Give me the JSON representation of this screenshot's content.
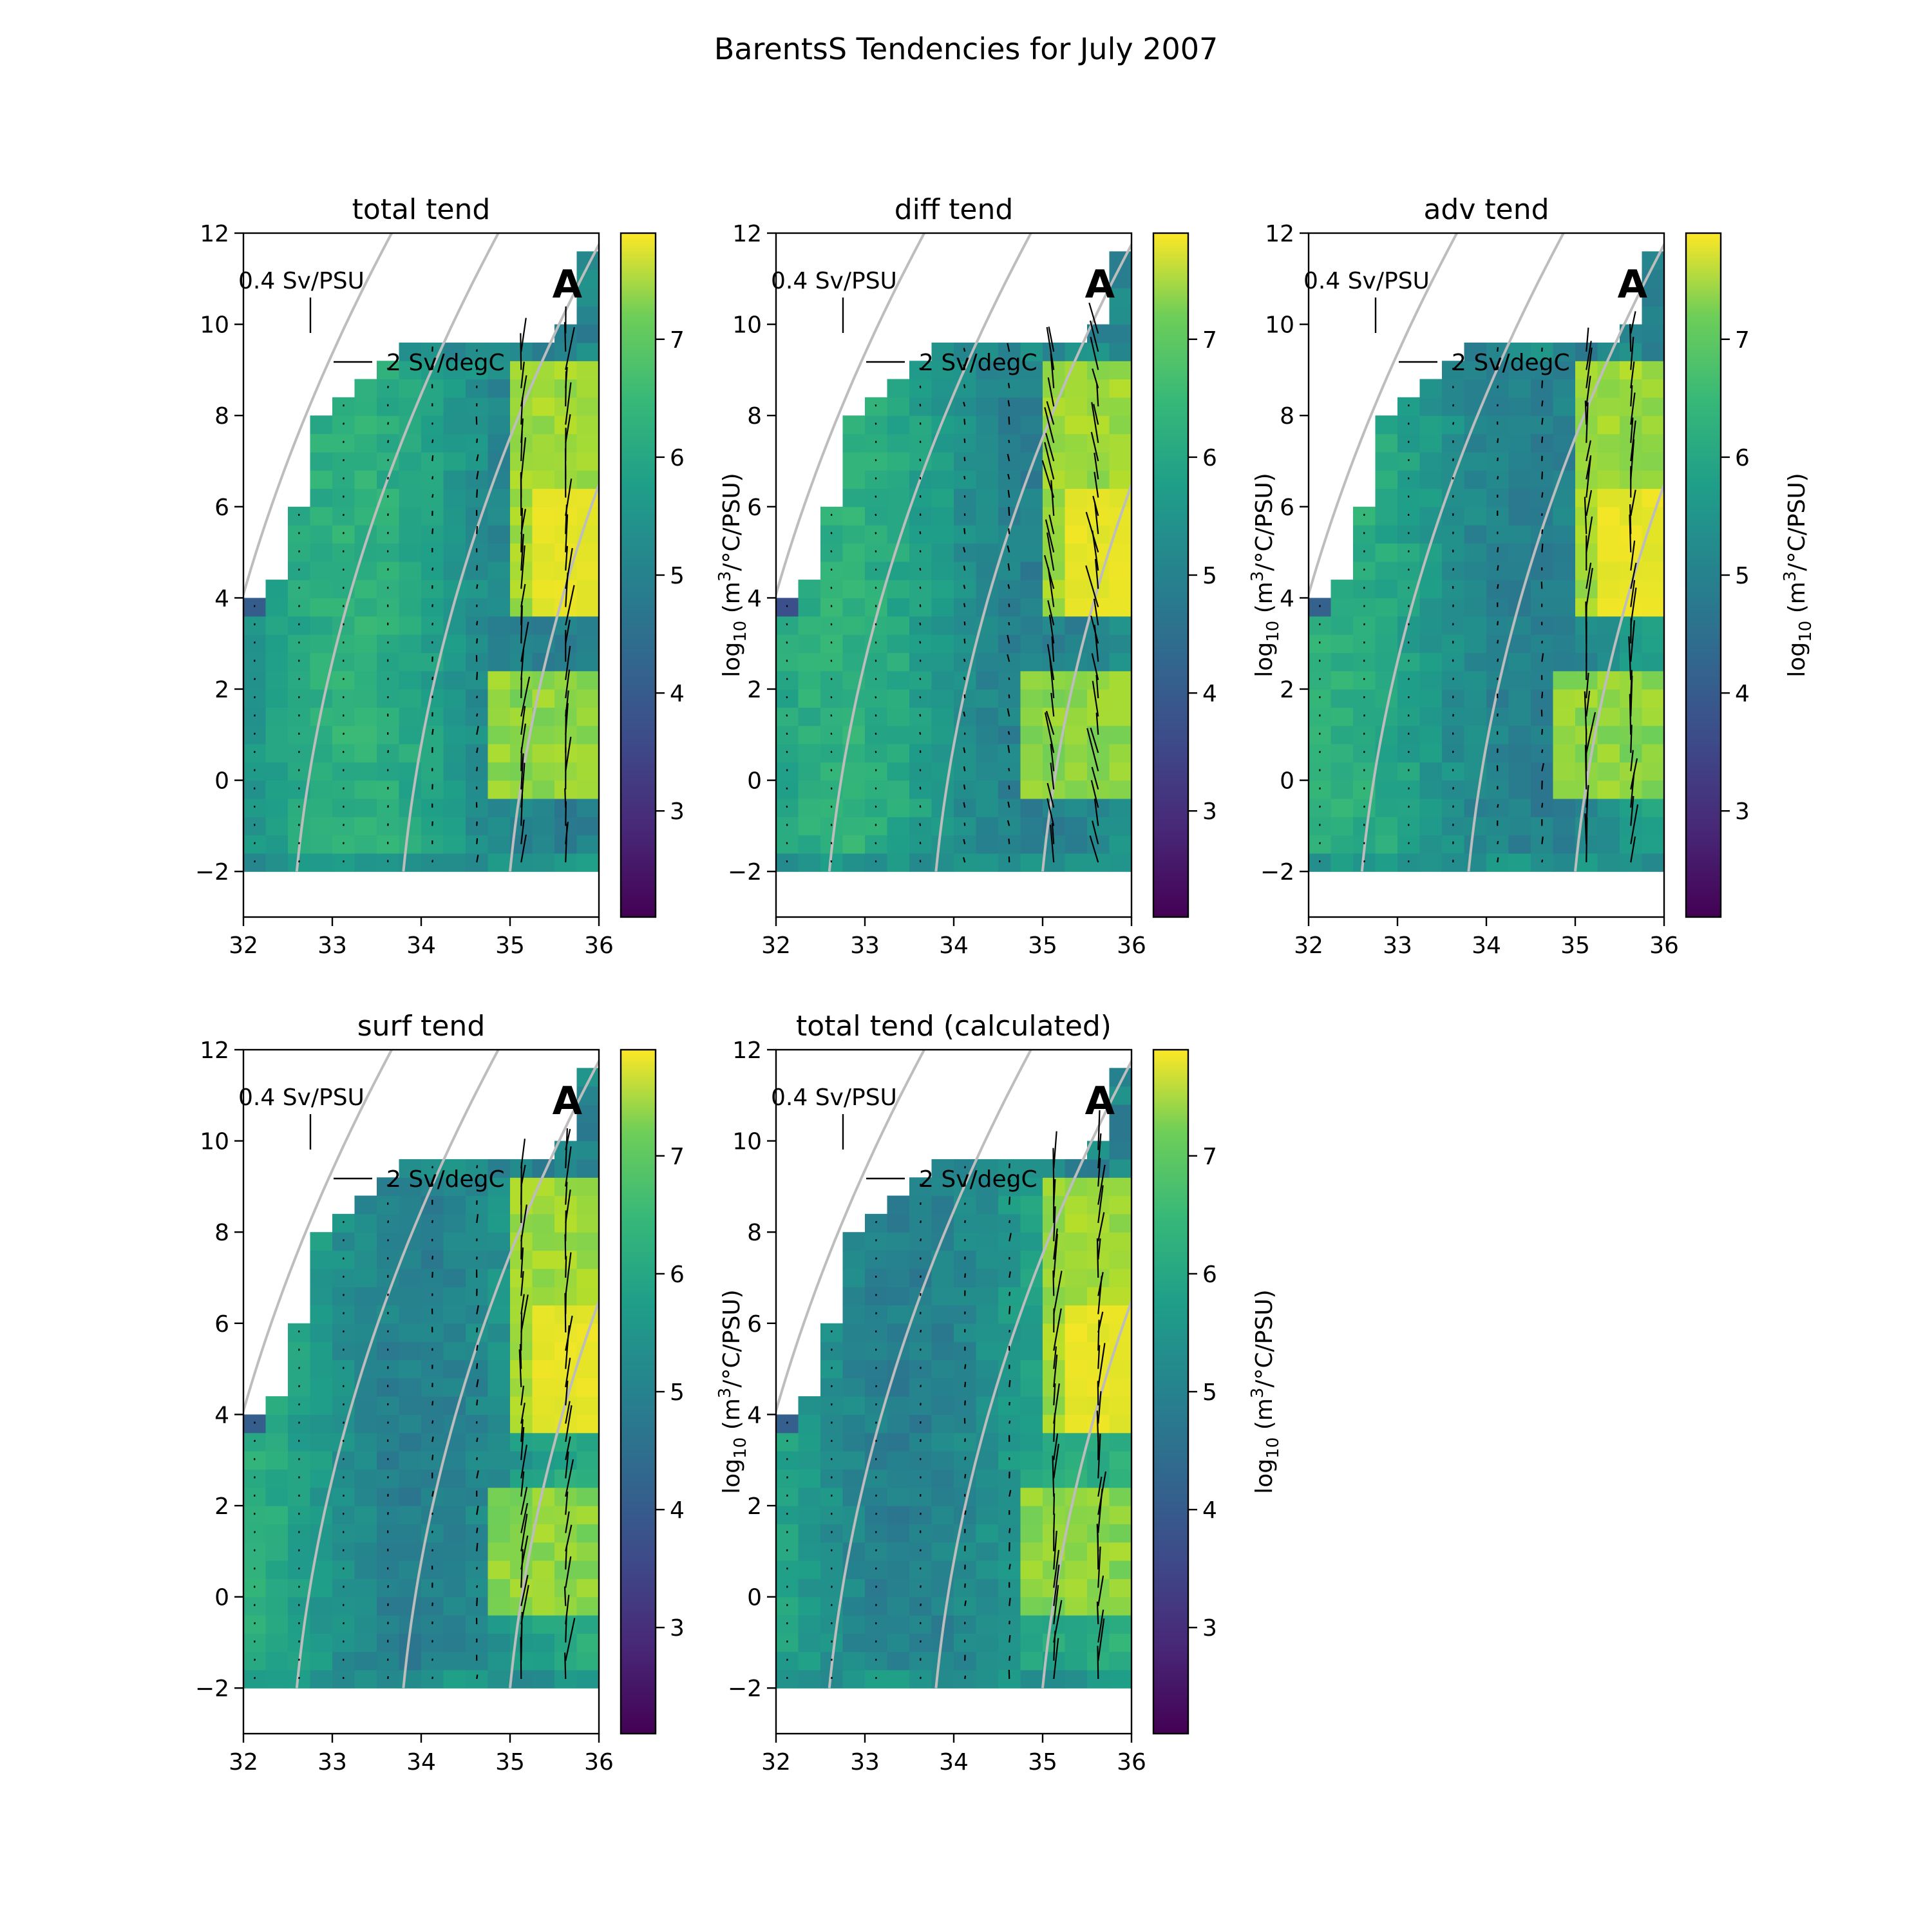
{
  "figure": {
    "suptitle": "BarentsS Tendencies for July 2007",
    "panel_letter": "A",
    "sv_psu_key": "0.4 Sv/PSU",
    "sv_degc_key": "2 Sv/degC",
    "colorbar_label_prefix": "log",
    "colorbar_label_sub": "10",
    "colorbar_label_units_a": " (m",
    "colorbar_label_units_sup": "3",
    "colorbar_label_units_b": "/°C/PSU)",
    "colormap": [
      "#440154",
      "#3b528b",
      "#21918c",
      "#5ec962",
      "#fde725"
    ]
  },
  "chart_data": [
    {
      "type": "heatmap",
      "title": "total tend",
      "xlabel": "",
      "ylabel": "",
      "xlim": [
        32,
        36
      ],
      "ylim": [
        -3,
        12
      ],
      "x_ticks": [
        "32",
        "33",
        "34",
        "35",
        "36"
      ],
      "y_ticks": [
        "−2",
        "0",
        "2",
        "4",
        "6",
        "8",
        "10",
        "12"
      ],
      "colorbar_ticks": [
        "3",
        "4",
        "5",
        "6",
        "7"
      ],
      "colorbar_range": [
        2.1,
        7.9
      ],
      "grid": false,
      "vectors": "quiver"
    },
    {
      "type": "heatmap",
      "title": "diff tend",
      "xlabel": "",
      "ylabel": "",
      "xlim": [
        32,
        36
      ],
      "ylim": [
        -3,
        12
      ],
      "x_ticks": [
        "32",
        "33",
        "34",
        "35",
        "36"
      ],
      "y_ticks": [
        "−2",
        "0",
        "2",
        "4",
        "6",
        "8",
        "10",
        "12"
      ],
      "colorbar_ticks": [
        "3",
        "4",
        "5",
        "6",
        "7"
      ],
      "colorbar_range": [
        2.1,
        7.9
      ],
      "grid": false,
      "vectors": "quiver"
    },
    {
      "type": "heatmap",
      "title": "adv tend",
      "xlabel": "",
      "ylabel": "",
      "xlim": [
        32,
        36
      ],
      "ylim": [
        -3,
        12
      ],
      "x_ticks": [
        "32",
        "33",
        "34",
        "35",
        "36"
      ],
      "y_ticks": [
        "−2",
        "0",
        "2",
        "4",
        "6",
        "8",
        "10",
        "12"
      ],
      "colorbar_ticks": [
        "3",
        "4",
        "5",
        "6",
        "7"
      ],
      "colorbar_range": [
        2.1,
        7.9
      ],
      "grid": false,
      "vectors": "quiver"
    },
    {
      "type": "heatmap",
      "title": "surf tend",
      "xlabel": "",
      "ylabel": "",
      "xlim": [
        32,
        36
      ],
      "ylim": [
        -3,
        12
      ],
      "x_ticks": [
        "32",
        "33",
        "34",
        "35",
        "36"
      ],
      "y_ticks": [
        "−2",
        "0",
        "2",
        "4",
        "6",
        "8",
        "10",
        "12"
      ],
      "colorbar_ticks": [
        "3",
        "4",
        "5",
        "6",
        "7"
      ],
      "colorbar_range": [
        2.1,
        7.9
      ],
      "grid": false,
      "vectors": "quiver"
    },
    {
      "type": "heatmap",
      "title": "total tend (calculated)",
      "xlabel": "",
      "ylabel": "",
      "xlim": [
        32,
        36
      ],
      "ylim": [
        -3,
        12
      ],
      "x_ticks": [
        "32",
        "33",
        "34",
        "35",
        "36"
      ],
      "y_ticks": [
        "−2",
        "0",
        "2",
        "4",
        "6",
        "8",
        "10",
        "12"
      ],
      "colorbar_ticks": [
        "3",
        "4",
        "5",
        "6",
        "7"
      ],
      "colorbar_range": [
        2.1,
        7.9
      ],
      "grid": false,
      "vectors": "quiver"
    }
  ]
}
